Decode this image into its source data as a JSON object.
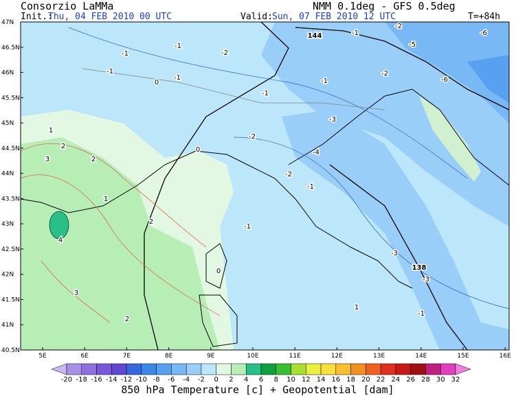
{
  "header": {
    "title": "Consorzio LaMMa",
    "model": "NMM 0.1deg - GFS 0.5deg",
    "init_label": "Init.:",
    "init": "Thu, 04 FEB 2010  00 UTC",
    "valid_label": "Valid:",
    "valid": "Sun, 07 FEB 2010  12 UTC",
    "lead": "T=+84h"
  },
  "map": {
    "lat_labels": [
      "47N",
      "46.5N",
      "46N",
      "45.5N",
      "45N",
      "44.5N",
      "44N",
      "43.5N",
      "43N",
      "42.5N",
      "42N",
      "41.5N",
      "41N",
      "40.5N"
    ],
    "lon_labels": [
      "5E",
      "6E",
      "7E",
      "8E",
      "9E",
      "10E",
      "11E",
      "12E",
      "13E",
      "14E",
      "15E",
      "16E"
    ],
    "contour_labels": [
      "-6",
      "-6",
      "-5",
      "-2",
      "-1",
      "-2",
      "-1",
      "-1",
      "-2",
      "-1",
      "-1",
      "-1",
      "-3",
      "-2",
      "-4",
      "-2",
      "-1",
      "-1",
      "-1",
      "-3",
      "-3",
      "-1",
      "0",
      "0",
      "0",
      "1",
      "2",
      "3",
      "2",
      "1",
      "2",
      "4",
      "3",
      "2",
      "1",
      "144",
      "138"
    ]
  },
  "colorbar": {
    "labels": [
      "-20",
      "-18",
      "-16",
      "-14",
      "-12",
      "-10",
      "-8",
      "-6",
      "-4",
      "-2",
      "0",
      "2",
      "4",
      "6",
      "8",
      "10",
      "12",
      "14",
      "16",
      "18",
      "20",
      "22",
      "24",
      "26",
      "28",
      "30",
      "32"
    ],
    "colors": [
      "#c8b8f0",
      "#a890e8",
      "#9070e0",
      "#7858d8",
      "#6048d0",
      "#3868e0",
      "#3c88e8",
      "#58a0f0",
      "#78b8f4",
      "#98cef8",
      "#bce6fa",
      "#e2f8e2",
      "#b6eeb6",
      "#28c088",
      "#10a040",
      "#38c030",
      "#a8e030",
      "#e8f040",
      "#f8e040",
      "#f8c030",
      "#f09020",
      "#f06020",
      "#e03020",
      "#c81818",
      "#a01010",
      "#c02080",
      "#e040c0",
      "#f080e0"
    ]
  },
  "footer": "850 hPa Temperature [c] + Geopotential [dam]"
}
